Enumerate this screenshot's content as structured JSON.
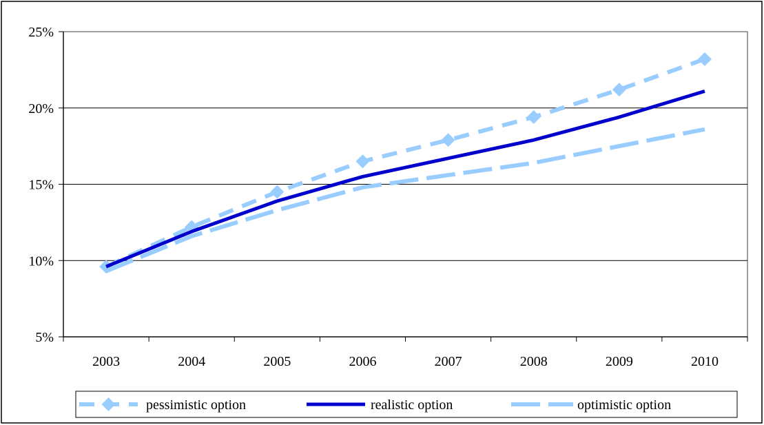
{
  "chart_data": {
    "type": "line",
    "title": "",
    "xlabel": "",
    "ylabel": "",
    "categories": [
      "2003",
      "2004",
      "2005",
      "2006",
      "2007",
      "2008",
      "2009",
      "2010"
    ],
    "y_ticks": [
      "5%",
      "10%",
      "15%",
      "20%",
      "25%"
    ],
    "y_tick_values": [
      5,
      10,
      15,
      20,
      25
    ],
    "ylim": [
      5,
      25
    ],
    "grid": true,
    "legend_position": "bottom",
    "series": [
      {
        "name": "pessimistic option",
        "values": [
          9.6,
          12.2,
          14.5,
          16.5,
          17.9,
          19.4,
          21.2,
          23.2
        ],
        "color": "#99ccff",
        "style": "dashed",
        "marker": "diamond"
      },
      {
        "name": "realistic option",
        "values": [
          9.6,
          11.9,
          13.9,
          15.5,
          16.7,
          17.9,
          19.4,
          21.1
        ],
        "color": "#0000cc",
        "style": "solid",
        "marker": "none"
      },
      {
        "name": "optimistic option",
        "values": [
          9.3,
          11.6,
          13.3,
          14.8,
          15.6,
          16.4,
          17.5,
          18.6
        ],
        "color": "#99ccff",
        "style": "longdash",
        "marker": "none"
      }
    ]
  }
}
